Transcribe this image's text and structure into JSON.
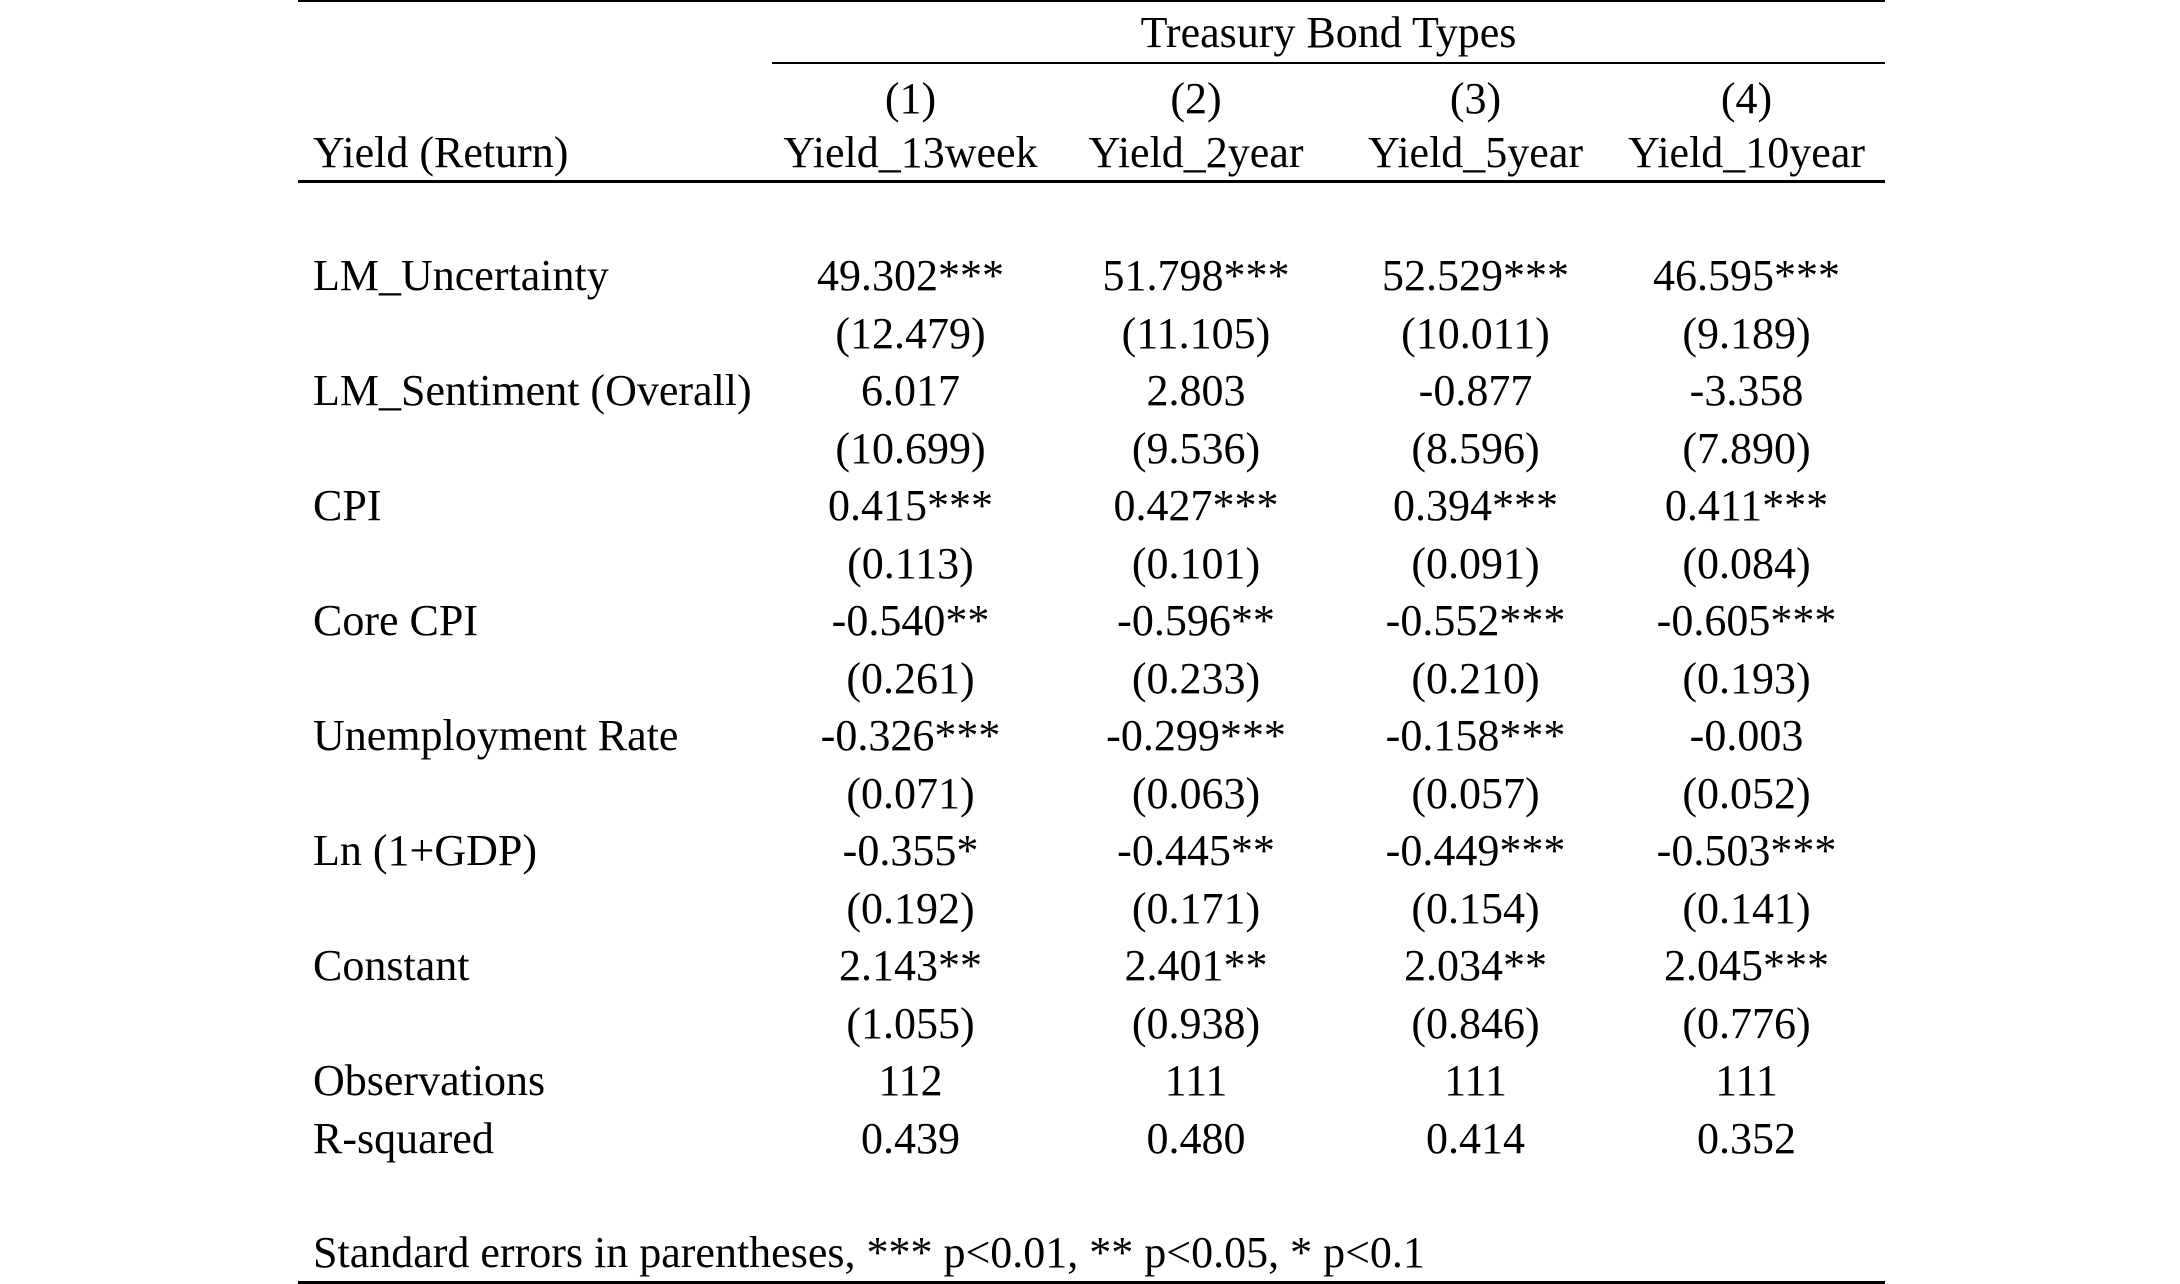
{
  "table": {
    "group_title": "Treasury Bond Types",
    "stub_header": "Yield (Return)",
    "columns": [
      {
        "number": "(1)",
        "name": "Yield_13week"
      },
      {
        "number": "(2)",
        "name": "Yield_2year"
      },
      {
        "number": "(3)",
        "name": "Yield_5year"
      },
      {
        "number": "(4)",
        "name": "Yield_10year"
      }
    ],
    "rows": [
      {
        "label": "LM_Uncertainty",
        "values": [
          "49.302***",
          "51.798***",
          "52.529***",
          "46.595***"
        ]
      },
      {
        "label": "",
        "values": [
          "(12.479)",
          "(11.105)",
          "(10.011)",
          "(9.189)"
        ]
      },
      {
        "label": "LM_Sentiment (Overall)",
        "values": [
          "6.017",
          "2.803",
          "-0.877",
          "-3.358"
        ]
      },
      {
        "label": "",
        "values": [
          "(10.699)",
          "(9.536)",
          "(8.596)",
          "(7.890)"
        ]
      },
      {
        "label": "CPI",
        "values": [
          "0.415***",
          "0.427***",
          "0.394***",
          "0.411***"
        ]
      },
      {
        "label": "",
        "values": [
          "(0.113)",
          "(0.101)",
          "(0.091)",
          "(0.084)"
        ]
      },
      {
        "label": "Core CPI",
        "values": [
          "-0.540**",
          "-0.596**",
          "-0.552***",
          "-0.605***"
        ]
      },
      {
        "label": "",
        "values": [
          "(0.261)",
          "(0.233)",
          "(0.210)",
          "(0.193)"
        ]
      },
      {
        "label": "Unemployment Rate",
        "values": [
          "-0.326***",
          "-0.299***",
          "-0.158***",
          "-0.003"
        ]
      },
      {
        "label": "",
        "values": [
          "(0.071)",
          "(0.063)",
          "(0.057)",
          "(0.052)"
        ]
      },
      {
        "label": "Ln (1+GDP)",
        "values": [
          "-0.355*",
          "-0.445**",
          "-0.449***",
          "-0.503***"
        ]
      },
      {
        "label": "",
        "values": [
          "(0.192)",
          "(0.171)",
          "(0.154)",
          "(0.141)"
        ]
      },
      {
        "label": "Constant",
        "values": [
          "2.143**",
          "2.401**",
          "2.034**",
          "2.045***"
        ]
      },
      {
        "label": "",
        "values": [
          "(1.055)",
          "(0.938)",
          "(0.846)",
          "(0.776)"
        ]
      },
      {
        "label": "Observations",
        "values": [
          "112",
          "111",
          "111",
          "111"
        ]
      },
      {
        "label": "R-squared",
        "values": [
          "0.439",
          "0.480",
          "0.414",
          "0.352"
        ]
      }
    ],
    "note": "Standard errors in parentheses, *** p<0.01, ** p<0.05, * p<0.1"
  }
}
